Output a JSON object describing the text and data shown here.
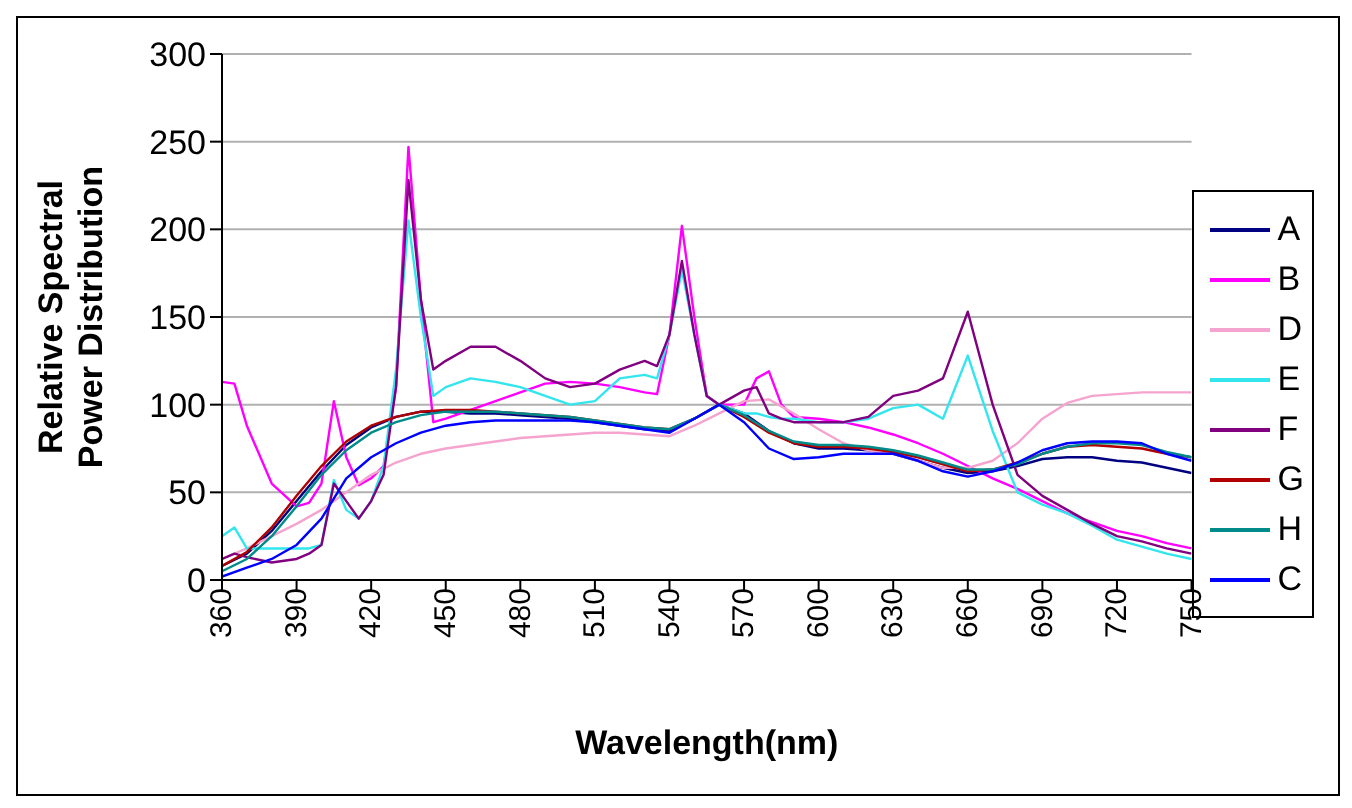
{
  "chart_data": {
    "type": "line",
    "xlabel": "Wavelength(nm)",
    "ylabel": "Relative Spectral Power Distribution",
    "xlim": [
      360,
      750
    ],
    "xticks": [
      360,
      390,
      420,
      450,
      480,
      510,
      540,
      570,
      600,
      630,
      660,
      690,
      720,
      750
    ],
    "ylim": [
      0,
      300
    ],
    "yticks": [
      0,
      50,
      100,
      150,
      200,
      250,
      300
    ],
    "grid": "y",
    "legend": "right",
    "marker": "none",
    "line_style": "solid",
    "series": [
      {
        "name": "A",
        "color": "#000080",
        "x": [
          360,
          370,
          380,
          390,
          400,
          410,
          420,
          430,
          440,
          450,
          460,
          470,
          480,
          490,
          500,
          510,
          520,
          530,
          540,
          550,
          560,
          570,
          580,
          590,
          600,
          610,
          620,
          630,
          640,
          650,
          660,
          670,
          680,
          690,
          700,
          710,
          720,
          730,
          740,
          750
        ],
        "values": [
          8,
          15,
          28,
          45,
          62,
          77,
          87,
          93,
          96,
          96,
          95,
          95,
          94,
          93,
          92,
          90,
          88,
          86,
          85,
          92,
          100,
          95,
          85,
          78,
          75,
          75,
          74,
          72,
          68,
          64,
          61,
          62,
          65,
          69,
          70,
          70,
          68,
          67,
          64,
          61
        ]
      },
      {
        "name": "B",
        "color": "#ff00ff",
        "x": [
          360,
          365,
          370,
          380,
          390,
          395,
          400,
          405,
          410,
          415,
          420,
          425,
          430,
          435,
          440,
          445,
          450,
          460,
          470,
          480,
          490,
          500,
          510,
          520,
          530,
          535,
          540,
          545,
          550,
          555,
          560,
          570,
          575,
          580,
          585,
          590,
          600,
          610,
          620,
          630,
          640,
          650,
          660,
          670,
          680,
          690,
          700,
          710,
          720,
          730,
          740,
          750
        ],
        "values": [
          113,
          112,
          88,
          55,
          42,
          44,
          55,
          102,
          70,
          54,
          58,
          65,
          110,
          247,
          160,
          90,
          92,
          97,
          102,
          107,
          112,
          113,
          112,
          110,
          107,
          106,
          140,
          202,
          150,
          105,
          100,
          100,
          115,
          119,
          100,
          93,
          92,
          90,
          87,
          83,
          78,
          72,
          65,
          58,
          52,
          45,
          38,
          33,
          28,
          25,
          21,
          18
        ]
      },
      {
        "name": "D",
        "color": "#f5a3cf",
        "x": [
          360,
          370,
          380,
          390,
          400,
          410,
          420,
          430,
          440,
          450,
          460,
          470,
          480,
          490,
          500,
          510,
          520,
          530,
          540,
          550,
          560,
          570,
          580,
          590,
          600,
          610,
          620,
          630,
          640,
          650,
          660,
          670,
          680,
          690,
          700,
          710,
          720,
          730,
          740,
          750
        ],
        "values": [
          12,
          18,
          25,
          32,
          40,
          50,
          60,
          67,
          72,
          75,
          77,
          79,
          81,
          82,
          83,
          84,
          84,
          83,
          82,
          88,
          95,
          102,
          103,
          95,
          86,
          78,
          74,
          72,
          68,
          64,
          64,
          68,
          78,
          92,
          101,
          105,
          106,
          107,
          107,
          107
        ]
      },
      {
        "name": "E",
        "color": "#33e6ee",
        "x": [
          360,
          365,
          370,
          380,
          390,
          395,
          400,
          405,
          410,
          415,
          420,
          425,
          430,
          435,
          440,
          445,
          450,
          460,
          470,
          480,
          490,
          500,
          510,
          520,
          530,
          535,
          540,
          545,
          550,
          555,
          560,
          570,
          575,
          580,
          585,
          590,
          600,
          610,
          620,
          630,
          640,
          650,
          660,
          670,
          680,
          690,
          700,
          710,
          720,
          730,
          740,
          750
        ],
        "values": [
          25,
          30,
          18,
          18,
          18,
          18,
          20,
          57,
          40,
          35,
          45,
          65,
          120,
          205,
          150,
          105,
          110,
          115,
          113,
          110,
          105,
          100,
          102,
          115,
          117,
          115,
          140,
          177,
          140,
          105,
          100,
          95,
          95,
          93,
          92,
          92,
          90,
          90,
          92,
          98,
          100,
          92,
          128,
          85,
          50,
          43,
          38,
          31,
          23,
          19,
          15,
          12
        ]
      },
      {
        "name": "F",
        "color": "#800080",
        "x": [
          360,
          365,
          370,
          380,
          390,
          395,
          400,
          405,
          410,
          415,
          420,
          425,
          430,
          435,
          440,
          445,
          450,
          460,
          470,
          480,
          490,
          500,
          510,
          520,
          530,
          535,
          540,
          545,
          550,
          555,
          560,
          570,
          575,
          580,
          585,
          590,
          600,
          610,
          620,
          630,
          640,
          650,
          660,
          670,
          680,
          690,
          700,
          710,
          720,
          730,
          740,
          750
        ],
        "values": [
          12,
          15,
          13,
          10,
          12,
          15,
          20,
          55,
          45,
          35,
          45,
          60,
          110,
          228,
          160,
          120,
          125,
          133,
          133,
          125,
          115,
          110,
          112,
          120,
          125,
          122,
          140,
          182,
          140,
          105,
          100,
          108,
          110,
          95,
          92,
          90,
          90,
          90,
          93,
          105,
          108,
          115,
          153,
          100,
          60,
          48,
          40,
          32,
          25,
          22,
          18,
          15
        ]
      },
      {
        "name": "G",
        "color": "#b00000",
        "x": [
          360,
          370,
          380,
          390,
          400,
          410,
          420,
          430,
          440,
          450,
          460,
          470,
          480,
          490,
          500,
          510,
          520,
          530,
          540,
          550,
          560,
          570,
          580,
          590,
          600,
          610,
          620,
          630,
          640,
          650,
          660,
          670,
          680,
          690,
          700,
          710,
          720,
          730,
          740,
          750
        ],
        "values": [
          8,
          16,
          30,
          48,
          65,
          79,
          88,
          93,
          96,
          97,
          97,
          96,
          95,
          94,
          93,
          91,
          89,
          87,
          86,
          92,
          100,
          93,
          84,
          78,
          76,
          76,
          75,
          73,
          70,
          66,
          62,
          63,
          67,
          72,
          76,
          77,
          76,
          75,
          72,
          70
        ]
      },
      {
        "name": "H",
        "color": "#008b8b",
        "x": [
          360,
          370,
          380,
          390,
          400,
          410,
          420,
          430,
          440,
          450,
          460,
          470,
          480,
          490,
          500,
          510,
          520,
          530,
          540,
          550,
          560,
          570,
          580,
          590,
          600,
          610,
          620,
          630,
          640,
          650,
          660,
          670,
          680,
          690,
          700,
          710,
          720,
          730,
          740,
          750
        ],
        "values": [
          5,
          12,
          25,
          42,
          60,
          74,
          84,
          90,
          94,
          96,
          96,
          96,
          95,
          94,
          93,
          91,
          89,
          87,
          86,
          92,
          100,
          94,
          85,
          79,
          77,
          77,
          76,
          74,
          71,
          67,
          63,
          63,
          66,
          72,
          76,
          78,
          78,
          77,
          73,
          70
        ]
      },
      {
        "name": "C",
        "color": "#0000ff",
        "x": [
          360,
          370,
          380,
          390,
          400,
          410,
          420,
          430,
          440,
          450,
          460,
          470,
          480,
          490,
          500,
          510,
          520,
          530,
          540,
          550,
          560,
          570,
          580,
          590,
          600,
          610,
          620,
          630,
          640,
          650,
          660,
          670,
          680,
          690,
          700,
          710,
          720,
          730,
          740,
          750
        ],
        "values": [
          2,
          7,
          12,
          20,
          35,
          58,
          70,
          78,
          84,
          88,
          90,
          91,
          91,
          91,
          91,
          90,
          88,
          86,
          84,
          92,
          100,
          90,
          75,
          69,
          70,
          72,
          72,
          72,
          68,
          62,
          59,
          62,
          67,
          74,
          78,
          79,
          79,
          78,
          72,
          68
        ]
      }
    ]
  }
}
